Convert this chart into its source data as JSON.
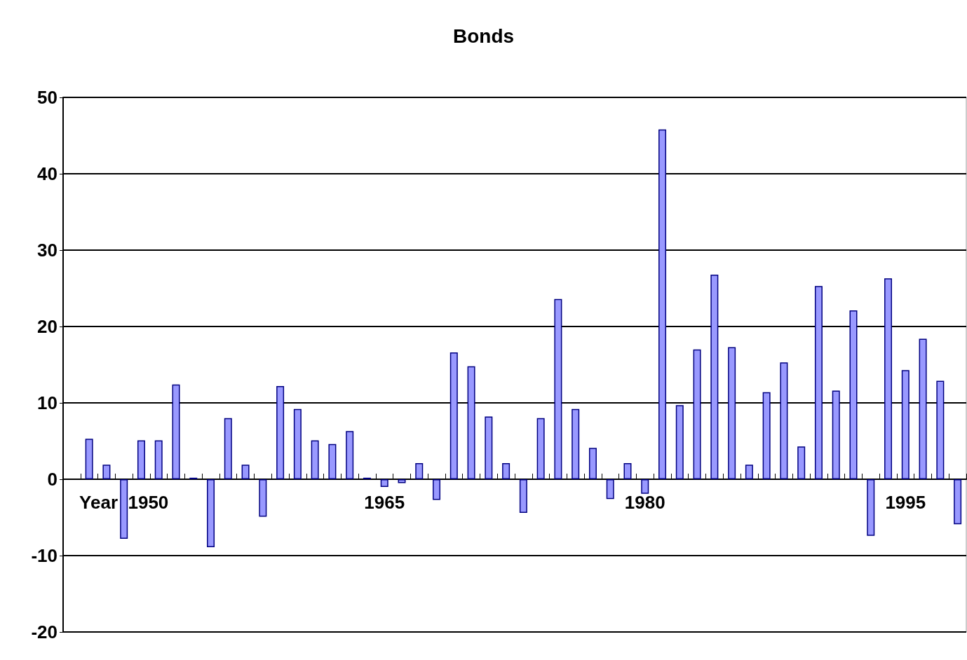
{
  "chart_data": {
    "type": "bar",
    "title": "Bonds",
    "categories": [
      null,
      null,
      null,
      "Year  1950",
      null,
      null,
      null,
      null,
      null,
      null,
      null,
      null,
      null,
      null,
      null,
      null,
      null,
      null,
      "1965",
      null,
      null,
      null,
      null,
      null,
      null,
      null,
      null,
      null,
      null,
      null,
      null,
      null,
      null,
      "1980",
      null,
      null,
      null,
      null,
      null,
      null,
      null,
      null,
      null,
      null,
      null,
      null,
      null,
      null,
      "1995",
      null,
      null,
      null
    ],
    "values": [
      null,
      5.3,
      1.9,
      -7.8,
      5.1,
      5.1,
      12.4,
      0.2,
      -8.9,
      8.0,
      1.9,
      -4.9,
      12.2,
      9.2,
      5.1,
      4.6,
      6.3,
      0.2,
      -1.0,
      -0.5,
      2.1,
      -2.7,
      16.6,
      14.8,
      8.2,
      2.1,
      -4.4,
      8.0,
      23.6,
      9.2,
      4.1,
      -2.6,
      2.1,
      -1.9,
      45.8,
      9.7,
      17.0,
      26.8,
      17.3,
      1.9,
      11.4,
      15.3,
      4.3,
      25.3,
      11.6,
      22.1,
      -7.4,
      26.3,
      14.3,
      18.4,
      12.9,
      -5.9
    ],
    "color": "#9999ff",
    "ylim": [
      -20,
      50
    ],
    "yticks": [
      -20,
      -10,
      0,
      10,
      20,
      30,
      40,
      50
    ],
    "grid": "y"
  }
}
